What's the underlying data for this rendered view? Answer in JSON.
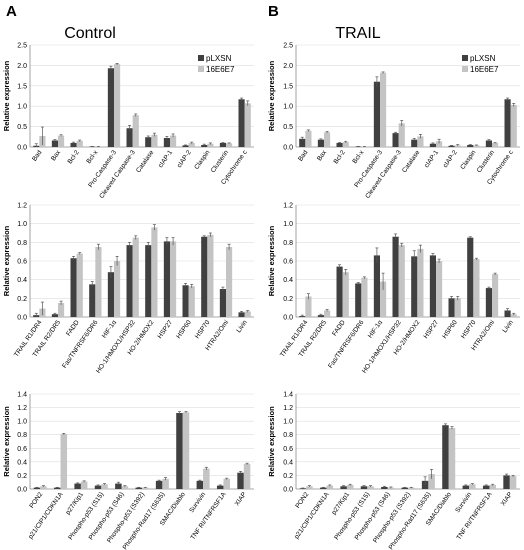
{
  "panels": [
    {
      "letter": "A",
      "title": "Control"
    },
    {
      "letter": "B",
      "title": "TRAIL"
    }
  ],
  "legend": [
    "pLXSN",
    "16E6E7"
  ],
  "colors": {
    "pLXSN": "#404040",
    "16E6E7": "#c4c4c4",
    "errorbar": "#555555",
    "axis": "#8c8c8c"
  },
  "chart_data": [
    {
      "type": "bar",
      "panel": "A",
      "row": 1,
      "title": "Control",
      "ylabel": "Relative expression",
      "ylim": [
        0,
        2.5
      ],
      "yticks": [
        "0.0",
        "0.5",
        "1.0",
        "1.5",
        "2.0",
        "2.5"
      ],
      "legend_position": "top-right",
      "categories": [
        "Bad",
        "Bax",
        "Bcl-2",
        "Bcl-x",
        "Pro-Caspase-3",
        "Cleaved Caspase-3",
        "Catalase",
        "cIAP-1",
        "cIAP-2",
        "Claspin",
        "Clusterin",
        "Cytochrome c"
      ],
      "series": [
        {
          "name": "pLXSN",
          "values": [
            0.03,
            0.16,
            0.1,
            0.01,
            1.93,
            0.46,
            0.24,
            0.22,
            0.04,
            0.05,
            0.1,
            1.17
          ]
        },
        {
          "name": "16E6E7",
          "values": [
            0.27,
            0.28,
            0.15,
            0.01,
            2.03,
            0.78,
            0.3,
            0.28,
            0.1,
            0.08,
            0.09,
            1.07
          ]
        }
      ],
      "errors": [
        [
          0.05,
          0.02,
          0.02,
          0.005,
          0.05,
          0.07,
          0.03,
          0.04,
          0.01,
          0.02,
          0.01,
          0.03
        ],
        [
          0.22,
          0.02,
          0.02,
          0.005,
          0.02,
          0.03,
          0.04,
          0.04,
          0.02,
          0.02,
          0.01,
          0.06
        ]
      ]
    },
    {
      "type": "bar",
      "panel": "B",
      "row": 1,
      "title": "TRAIL",
      "ylabel": "Relative expression",
      "ylim": [
        0,
        2.5
      ],
      "yticks": [
        "0.0",
        "0.5",
        "1.0",
        "1.5",
        "2.0",
        "2.5"
      ],
      "legend_position": "top-right",
      "categories": [
        "Bad",
        "Bax",
        "Bcl-2",
        "Bcl-x",
        "Pro-Caspase-3",
        "Cleaved Caspase-3",
        "Catalase",
        "cIAP-1",
        "cIAP-2",
        "Claspin",
        "Clusterin",
        "Cytochrome c"
      ],
      "series": [
        {
          "name": "pLXSN",
          "values": [
            0.2,
            0.18,
            0.1,
            0.01,
            1.6,
            0.34,
            0.18,
            0.08,
            0.03,
            0.05,
            0.16,
            1.17
          ]
        },
        {
          "name": "16E6E7",
          "values": [
            0.4,
            0.36,
            0.12,
            0.01,
            1.82,
            0.58,
            0.26,
            0.14,
            0.04,
            0.04,
            0.1,
            1.03
          ]
        }
      ],
      "errors": [
        [
          0.04,
          0.02,
          0.01,
          0.005,
          0.12,
          0.02,
          0.03,
          0.02,
          0.01,
          0.01,
          0.02,
          0.03
        ],
        [
          0.02,
          0.02,
          0.02,
          0.005,
          0.02,
          0.07,
          0.05,
          0.05,
          0.02,
          0.01,
          0.01,
          0.04
        ]
      ]
    },
    {
      "type": "bar",
      "panel": "A",
      "row": 2,
      "ylabel": "Relative expression",
      "ylim": [
        0,
        1.2
      ],
      "yticks": [
        "0.0",
        "0.2",
        "0.4",
        "0.6",
        "0.8",
        "1.0",
        "1.2"
      ],
      "categories": [
        "TRAIL R1/DR4",
        "TRAIL R2/DR5",
        "FADD",
        "Fas/TNFRSF6/DR6",
        "HIF-1α",
        "HO-1/HMOX1/HSP32",
        "HO-2/HMOX2",
        "HSP27",
        "HSP60",
        "HSP70",
        "HTRA2/Omi",
        "Livin"
      ],
      "series": [
        {
          "name": "pLXSN",
          "values": [
            0.02,
            0.03,
            0.63,
            0.35,
            0.48,
            0.77,
            0.77,
            0.81,
            0.34,
            0.86,
            0.3,
            0.05
          ]
        },
        {
          "name": "16E6E7",
          "values": [
            0.09,
            0.15,
            0.68,
            0.75,
            0.6,
            0.85,
            0.96,
            0.81,
            0.33,
            0.88,
            0.75,
            0.06
          ]
        }
      ],
      "errors": [
        [
          0.02,
          0.01,
          0.02,
          0.03,
          0.06,
          0.03,
          0.03,
          0.04,
          0.02,
          0.01,
          0.02,
          0.01
        ],
        [
          0.07,
          0.02,
          0.01,
          0.03,
          0.05,
          0.02,
          0.03,
          0.04,
          0.02,
          0.02,
          0.03,
          0.01
        ]
      ]
    },
    {
      "type": "bar",
      "panel": "B",
      "row": 2,
      "ylabel": "Relative expression",
      "ylim": [
        0,
        1.2
      ],
      "yticks": [
        "0.0",
        "0.2",
        "0.4",
        "0.6",
        "0.8",
        "1.0",
        "1.2"
      ],
      "categories": [
        "TRAIL R1/DR4",
        "TRAIL R2/DR5",
        "FADD",
        "Fas/TNFRSF6/DR6",
        "HIF-1α",
        "HO-1/HMOX1/HSP32",
        "HO-2/HMOX2",
        "HSP27",
        "HSP60",
        "HSP70",
        "HTRA2/Omi",
        "Livin"
      ],
      "series": [
        {
          "name": "pLXSN",
          "values": [
            0.01,
            0.02,
            0.54,
            0.36,
            0.66,
            0.86,
            0.65,
            0.66,
            0.2,
            0.85,
            0.31,
            0.07
          ]
        },
        {
          "name": "16E6E7",
          "values": [
            0.22,
            0.07,
            0.48,
            0.42,
            0.38,
            0.77,
            0.73,
            0.6,
            0.2,
            0.62,
            0.46,
            0.03
          ]
        }
      ],
      "errors": [
        [
          0.01,
          0.01,
          0.02,
          0.01,
          0.08,
          0.03,
          0.06,
          0.02,
          0.02,
          0.01,
          0.01,
          0.02
        ],
        [
          0.03,
          0.01,
          0.03,
          0.01,
          0.09,
          0.02,
          0.04,
          0.02,
          0.02,
          0.01,
          0.01,
          0.01
        ]
      ]
    },
    {
      "type": "bar",
      "panel": "A",
      "row": 3,
      "ylabel": "Relative expression",
      "ylim": [
        0,
        1.4
      ],
      "yticks": [
        "0.0",
        "0.2",
        "0.4",
        "0.6",
        "0.8",
        "1.0",
        "1.2",
        "1.4"
      ],
      "categories": [
        "PON2",
        "p21/CIP1/CDKN1A",
        "p27/Kip1",
        "Phospho-p53 (S15)",
        "Phospho-p53 (S46)",
        "Phospho-p53 (S392)",
        "Phospho-Rad17 (S635)",
        "SMAC/Diablo",
        "Survivin",
        "TNF RI/TNFRSF1A",
        "XIAP"
      ],
      "series": [
        {
          "name": "pLXSN",
          "values": [
            0.02,
            0.02,
            0.08,
            0.05,
            0.08,
            0.02,
            0.12,
            1.12,
            0.12,
            0.05,
            0.24
          ]
        },
        {
          "name": "16E6E7",
          "values": [
            0.04,
            0.81,
            0.11,
            0.07,
            0.04,
            0.02,
            0.15,
            1.13,
            0.3,
            0.15,
            0.37
          ]
        }
      ],
      "errors": [
        [
          0.005,
          0.005,
          0.01,
          0.01,
          0.02,
          0.005,
          0.01,
          0.02,
          0.01,
          0.01,
          0.02
        ],
        [
          0.01,
          0.01,
          0.01,
          0.01,
          0.01,
          0.005,
          0.02,
          0.01,
          0.02,
          0.01,
          0.01
        ]
      ]
    },
    {
      "type": "bar",
      "panel": "B",
      "row": 3,
      "ylabel": "Relative expression",
      "ylim": [
        0,
        1.4
      ],
      "yticks": [
        "0.0",
        "0.2",
        "0.4",
        "0.6",
        "0.8",
        "1.0",
        "1.2",
        "1.4"
      ],
      "categories": [
        "PON2",
        "p21/CIP1/CDKN1A",
        "p27/Kip1",
        "Phospho-p53 (S15)",
        "Phospho-p53 (S46)",
        "Phospho-p53 (S392)",
        "Phospho-Rad17 (S635)",
        "SMAC/Diablo",
        "Survivin",
        "TNF RI/TNFRSF1A",
        "XIAP"
      ],
      "series": [
        {
          "name": "pLXSN",
          "values": [
            0.01,
            0.02,
            0.04,
            0.04,
            0.03,
            0.02,
            0.12,
            0.94,
            0.05,
            0.05,
            0.2
          ]
        },
        {
          "name": "16E6E7",
          "values": [
            0.04,
            0.05,
            0.06,
            0.04,
            0.02,
            0.02,
            0.22,
            0.9,
            0.07,
            0.06,
            0.19
          ]
        }
      ],
      "errors": [
        [
          0.005,
          0.005,
          0.01,
          0.01,
          0.01,
          0.005,
          0.06,
          0.02,
          0.01,
          0.01,
          0.02
        ],
        [
          0.01,
          0.01,
          0.01,
          0.01,
          0.01,
          0.005,
          0.07,
          0.02,
          0.01,
          0.01,
          0.01
        ]
      ]
    }
  ]
}
